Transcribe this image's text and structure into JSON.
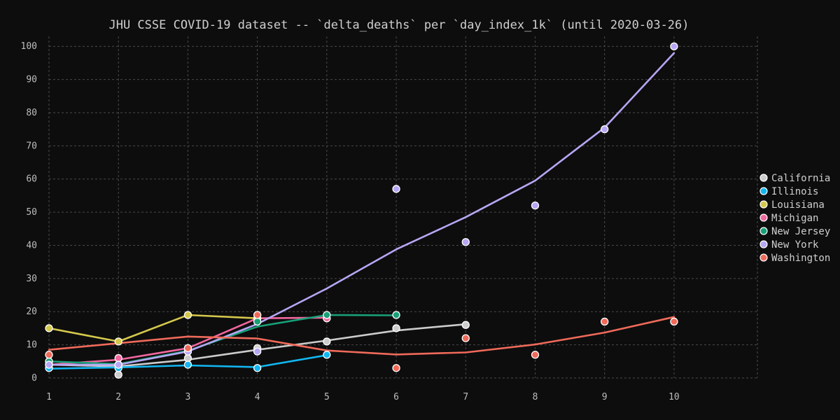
{
  "chart_data": {
    "type": "line",
    "title": "JHU CSSE COVID-19 dataset -- `delta_deaths` per `day_index_1k` (until 2020-03-26)",
    "xlabel": "",
    "ylabel": "",
    "xlim": [
      1,
      11.2
    ],
    "ylim": [
      0,
      103
    ],
    "x_ticks": [
      1,
      2,
      3,
      4,
      5,
      6,
      7,
      8,
      9,
      10
    ],
    "y_ticks": [
      0,
      10,
      20,
      30,
      40,
      50,
      60,
      70,
      80,
      90,
      100
    ],
    "grid": true,
    "legend_position": "right",
    "background": "#0d0d0d",
    "series": [
      {
        "name": "California",
        "color": "#cccccc",
        "points": [
          [
            1,
            5
          ],
          [
            2,
            1
          ],
          [
            3,
            6
          ],
          [
            4,
            9
          ],
          [
            5,
            11
          ],
          [
            6,
            15
          ],
          [
            7,
            16
          ]
        ],
        "trend": [
          [
            1,
            4
          ],
          [
            2,
            3.5
          ],
          [
            3,
            5.5
          ],
          [
            4,
            8.5
          ],
          [
            5,
            11.3
          ],
          [
            6,
            14.3
          ],
          [
            7,
            16.2
          ]
        ]
      },
      {
        "name": "Illinois",
        "color": "#12b6f0",
        "points": [
          [
            1,
            3
          ],
          [
            2,
            3
          ],
          [
            3,
            4
          ],
          [
            4,
            3
          ],
          [
            5,
            7
          ]
        ],
        "trend": [
          [
            1,
            2.8
          ],
          [
            2,
            3.2
          ],
          [
            3,
            3.8
          ],
          [
            4,
            3.3
          ],
          [
            5,
            6.9
          ]
        ]
      },
      {
        "name": "Louisiana",
        "color": "#d4c84c",
        "points": [
          [
            1,
            15
          ],
          [
            2,
            11
          ],
          [
            3,
            19
          ],
          [
            4,
            18
          ]
        ],
        "trend": [
          [
            1,
            15
          ],
          [
            2,
            11
          ],
          [
            3,
            19
          ],
          [
            4,
            18
          ]
        ]
      },
      {
        "name": "Michigan",
        "color": "#f0679e",
        "points": [
          [
            1,
            4
          ],
          [
            2,
            6
          ],
          [
            3,
            9
          ],
          [
            4,
            19
          ],
          [
            5,
            18
          ]
        ],
        "trend": [
          [
            1,
            4
          ],
          [
            2,
            5.5
          ],
          [
            3,
            9
          ],
          [
            4,
            18
          ],
          [
            5,
            18.2
          ]
        ]
      },
      {
        "name": "New Jersey",
        "color": "#18a078",
        "points": [
          [
            1,
            5
          ],
          [
            2,
            4
          ],
          [
            3,
            8
          ],
          [
            4,
            17
          ],
          [
            5,
            19
          ],
          [
            6,
            19
          ]
        ],
        "trend": [
          [
            1,
            5
          ],
          [
            2,
            4.2
          ],
          [
            3,
            8.2
          ],
          [
            4,
            15.5
          ],
          [
            5,
            19
          ],
          [
            6,
            18.9
          ]
        ]
      },
      {
        "name": "New York",
        "color": "#b7a6f5",
        "points": [
          [
            1,
            4
          ],
          [
            2,
            4
          ],
          [
            3,
            8
          ],
          [
            4,
            8
          ],
          [
            6,
            57
          ],
          [
            7,
            41
          ],
          [
            8,
            52
          ],
          [
            9,
            75
          ],
          [
            10,
            100
          ]
        ],
        "trend": [
          [
            1,
            4
          ],
          [
            2,
            4
          ],
          [
            3,
            8
          ],
          [
            4,
            16.3
          ],
          [
            5,
            27
          ],
          [
            6,
            38.8
          ],
          [
            7,
            48.5
          ],
          [
            8,
            59.5
          ],
          [
            9,
            75.5
          ],
          [
            10,
            98
          ]
        ]
      },
      {
        "name": "Washington",
        "color": "#f06a5a",
        "points": [
          [
            1,
            7
          ],
          [
            3,
            9
          ],
          [
            4,
            19
          ],
          [
            6,
            3
          ],
          [
            7,
            12
          ],
          [
            8,
            7
          ],
          [
            9,
            17
          ],
          [
            10,
            17
          ]
        ],
        "trend": [
          [
            1,
            8.5
          ],
          [
            2,
            10.5
          ],
          [
            3,
            12.5
          ],
          [
            4,
            11.9
          ],
          [
            5,
            8.3
          ],
          [
            6,
            7.1
          ],
          [
            7,
            7.7
          ],
          [
            8,
            10.1
          ],
          [
            9,
            13.7
          ],
          [
            10,
            18.4
          ]
        ]
      }
    ]
  }
}
